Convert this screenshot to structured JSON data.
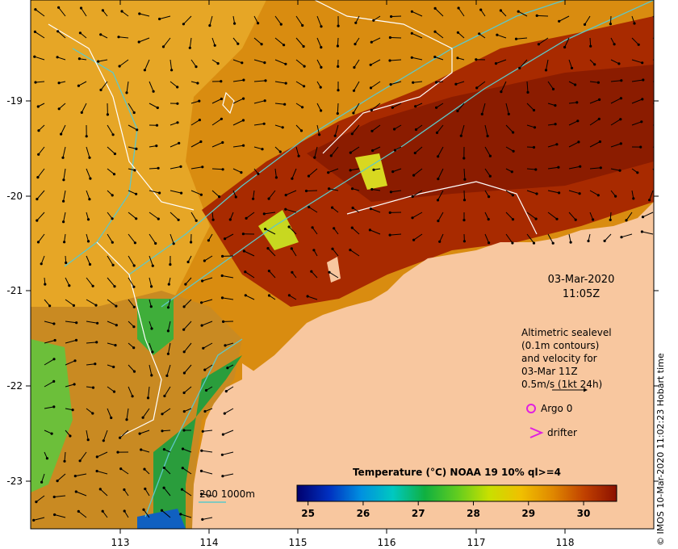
{
  "map": {
    "lon_ticks": [
      "113",
      "114",
      "115",
      "116",
      "117",
      "118"
    ],
    "lat_ticks": [
      "-19",
      "-20",
      "-21",
      "-22",
      "-23"
    ],
    "lon_range": [
      112.0,
      119.0
    ],
    "lat_range": [
      -23.5,
      -18.0
    ],
    "land_color": "#f8c79f",
    "ocean_colors": [
      "#c86a00",
      "#d98c10",
      "#e0a020",
      "#b03a00",
      "#8b1c00",
      "#4dbb3a",
      "#2a9d3c"
    ],
    "contour_color_altimetry": "#ffffff",
    "contour_color_bathymetry": "#5ec8c8"
  },
  "date_label": {
    "date": "03-Mar-2020",
    "time": "11:05Z"
  },
  "altimetry_note": {
    "lines": [
      "Altimetric sealevel",
      "(0.1m contours)",
      "and velocity for",
      "03-Mar 11Z",
      "0.5m/s (1kt 24h)"
    ]
  },
  "legend": {
    "argo": "Argo 0",
    "argo_color": "#e020e0",
    "drifter": "drifter",
    "drifter_color": "#e020e0"
  },
  "bathymetry_legend": {
    "text": "200  1000m"
  },
  "colorbar": {
    "title": "Temperature (°C) NOAA 19 10% ql>=4",
    "ticks": [
      "25",
      "26",
      "27",
      "28",
      "29",
      "30"
    ],
    "range": [
      24.8,
      30.6
    ],
    "gradient": [
      "#00006e",
      "#0030c0",
      "#0090e0",
      "#00c8c0",
      "#10b040",
      "#60cc20",
      "#c8e000",
      "#f0c000",
      "#e08800",
      "#c04000",
      "#8c1000"
    ]
  },
  "credit": "© IMOS 10-Mar-2020 11:02:23 Hobart time",
  "vectors": {
    "u": 0.0,
    "v": 0.0
  }
}
